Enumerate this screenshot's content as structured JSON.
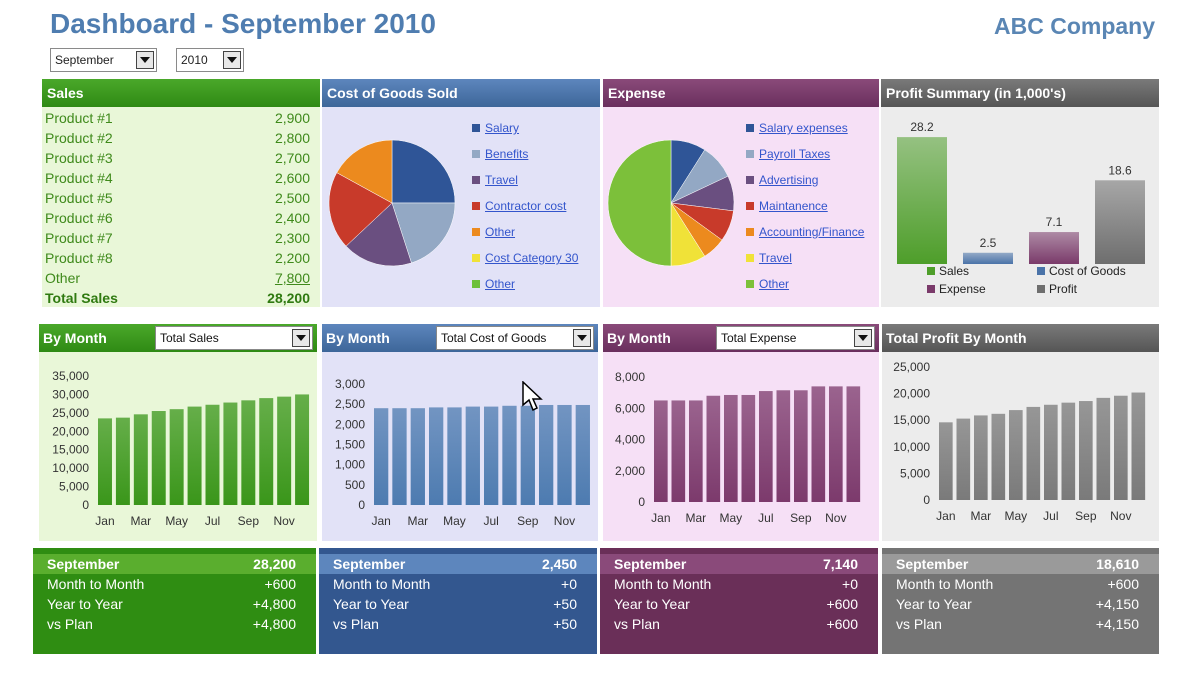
{
  "header": {
    "title": "Dashboard - September 2010",
    "company": "ABC Company"
  },
  "filters": {
    "month": "September",
    "year": "2010"
  },
  "sales": {
    "title": "Sales",
    "rows": [
      {
        "label": "Product #1",
        "value": "2,900"
      },
      {
        "label": "Product #2",
        "value": "2,800"
      },
      {
        "label": "Product #3",
        "value": "2,700"
      },
      {
        "label": "Product #4",
        "value": "2,600"
      },
      {
        "label": "Product #5",
        "value": "2,500"
      },
      {
        "label": "Product #6",
        "value": "2,400"
      },
      {
        "label": "Product #7",
        "value": "2,300"
      },
      {
        "label": "Product #8",
        "value": "2,200"
      },
      {
        "label": "Other",
        "value": "7,800"
      }
    ],
    "total_label": "Total Sales",
    "total_value": "28,200"
  },
  "cogs": {
    "title": "Cost of Goods Sold",
    "legend": [
      "Salary",
      "Benefits",
      "Travel",
      "Contractor cost",
      "Other",
      "Cost Category 30",
      "Other"
    ]
  },
  "expense": {
    "title": "Expense",
    "legend": [
      "Salary expenses",
      "Payroll Taxes",
      "Advertising",
      "Maintanence",
      "Accounting/Finance",
      "Travel",
      "Other"
    ]
  },
  "profit_summary": {
    "title": "Profit Summary (in 1,000's)"
  },
  "monthly": {
    "sales": {
      "title": "By Month",
      "select": "Total Sales"
    },
    "cogs": {
      "title": "By Month",
      "select": "Total Cost of Goods"
    },
    "expense": {
      "title": "By Month",
      "select": "Total Expense"
    },
    "profit": {
      "title": "Total Profit By Month"
    }
  },
  "summaries": [
    {
      "key": "sales",
      "rows": [
        [
          "September",
          "28,200"
        ],
        [
          "Month to Month",
          "+600"
        ],
        [
          "Year to Year",
          "+4,800"
        ],
        [
          "vs Plan",
          "+4,800"
        ]
      ]
    },
    {
      "key": "cogs",
      "rows": [
        [
          "September",
          "2,450"
        ],
        [
          "Month to Month",
          "+0"
        ],
        [
          "Year to Year",
          "+50"
        ],
        [
          "vs Plan",
          "+50"
        ]
      ]
    },
    {
      "key": "expense",
      "rows": [
        [
          "September",
          "7,140"
        ],
        [
          "Month to Month",
          "+0"
        ],
        [
          "Year to Year",
          "+600"
        ],
        [
          "vs Plan",
          "+600"
        ]
      ]
    },
    {
      "key": "profit",
      "rows": [
        [
          "September",
          "18,610"
        ],
        [
          "Month to Month",
          "+600"
        ],
        [
          "Year to Year",
          "+4,150"
        ],
        [
          "vs Plan",
          "+4,150"
        ]
      ]
    }
  ],
  "colors": {
    "sales": "#3f9a1e",
    "cogs": "#4a73a8",
    "expense": "#7a3a6a",
    "profit": "#6e6e6e",
    "sales_bg": "#e9f7d8",
    "cogs_bg": "#e2e2f7",
    "expense_bg": "#f6e0f6",
    "profit_bg": "#ececec"
  },
  "chart_data": [
    {
      "type": "pie",
      "id": "cogs-pie",
      "labels": [
        "Salary",
        "Benefits",
        "Travel",
        "Contractor cost",
        "Other",
        "Cost Category 30",
        "Other"
      ],
      "values": [
        25,
        20,
        18,
        20,
        17,
        0,
        0
      ],
      "colors": [
        "#2f5597",
        "#93a8c4",
        "#6a4f80",
        "#c83a2a",
        "#ec8a1e",
        "#f0e238",
        "#6cc03a"
      ]
    },
    {
      "type": "pie",
      "id": "expense-pie",
      "labels": [
        "Salary expenses",
        "Payroll Taxes",
        "Advertising",
        "Maintanence",
        "Accounting/Finance",
        "Travel",
        "Other"
      ],
      "values": [
        9,
        9,
        9,
        8,
        6,
        9,
        50
      ],
      "colors": [
        "#2f5597",
        "#93a8c4",
        "#6a4f80",
        "#c83a2a",
        "#ec8a1e",
        "#f0e238",
        "#7cc03a"
      ]
    },
    {
      "type": "bar",
      "id": "profit-summary",
      "categories": [
        "Sales",
        "Cost of Goods",
        "Expense",
        "Profit"
      ],
      "values": [
        28.2,
        2.5,
        7.1,
        18.6
      ],
      "labels": [
        "28.2",
        "2.5",
        "7.1",
        "18.6"
      ],
      "colors": [
        "#4e9e2a",
        "#4a73a8",
        "#7a3a6a",
        "#6e6e6e"
      ],
      "ylim": [
        0,
        30
      ]
    },
    {
      "type": "bar",
      "id": "sales-month",
      "categories": [
        "Jan",
        "Feb",
        "Mar",
        "Apr",
        "May",
        "Jun",
        "Jul",
        "Aug",
        "Sep",
        "Oct",
        "Nov",
        "Dec"
      ],
      "tick_labels": [
        "Jan",
        "Mar",
        "May",
        "Jul",
        "Sep",
        "Nov"
      ],
      "values": [
        23500,
        23700,
        24600,
        25500,
        26000,
        26700,
        27200,
        27800,
        28400,
        29000,
        29400,
        30000
      ],
      "yticks": [
        "35,000",
        "30,000",
        "25,000",
        "20,000",
        "15,000",
        "10,000",
        "5,000",
        "0"
      ],
      "ylim": [
        0,
        35000
      ],
      "color": "#3a961a"
    },
    {
      "type": "bar",
      "id": "cogs-month",
      "categories": [
        "Jan",
        "Feb",
        "Mar",
        "Apr",
        "May",
        "Jun",
        "Jul",
        "Aug",
        "Sep",
        "Oct",
        "Nov",
        "Dec"
      ],
      "tick_labels": [
        "Jan",
        "Mar",
        "May",
        "Jul",
        "Sep",
        "Nov"
      ],
      "values": [
        2400,
        2400,
        2400,
        2420,
        2420,
        2440,
        2440,
        2460,
        2460,
        2480,
        2480,
        2480
      ],
      "yticks": [
        "3,000",
        "2,500",
        "2,000",
        "1,500",
        "1,000",
        "500",
        "0"
      ],
      "ylim": [
        0,
        3000
      ],
      "color": "#4d7bb0"
    },
    {
      "type": "bar",
      "id": "expense-month",
      "categories": [
        "Jan",
        "Feb",
        "Mar",
        "Apr",
        "May",
        "Jun",
        "Jul",
        "Aug",
        "Sep",
        "Oct",
        "Nov",
        "Dec"
      ],
      "tick_labels": [
        "Jan",
        "Mar",
        "May",
        "Jul",
        "Sep",
        "Nov"
      ],
      "values": [
        6500,
        6500,
        6500,
        6800,
        6850,
        6850,
        7100,
        7150,
        7150,
        7400,
        7400,
        7400
      ],
      "yticks": [
        "8,000",
        "6,000",
        "4,000",
        "2,000",
        "0"
      ],
      "ylim": [
        0,
        8000
      ],
      "color": "#7c3a6c"
    },
    {
      "type": "bar",
      "id": "profit-month",
      "categories": [
        "Jan",
        "Feb",
        "Mar",
        "Apr",
        "May",
        "Jun",
        "Jul",
        "Aug",
        "Sep",
        "Oct",
        "Nov",
        "Dec"
      ],
      "tick_labels": [
        "Jan",
        "Mar",
        "May",
        "Jul",
        "Sep",
        "Nov"
      ],
      "values": [
        14600,
        15300,
        15900,
        16200,
        16900,
        17500,
        17900,
        18300,
        18600,
        19200,
        19600,
        20200
      ],
      "yticks": [
        "25,000",
        "20,000",
        "15,000",
        "10,000",
        "5,000",
        "0"
      ],
      "ylim": [
        0,
        25000
      ],
      "color": "#7a7a7a"
    }
  ]
}
